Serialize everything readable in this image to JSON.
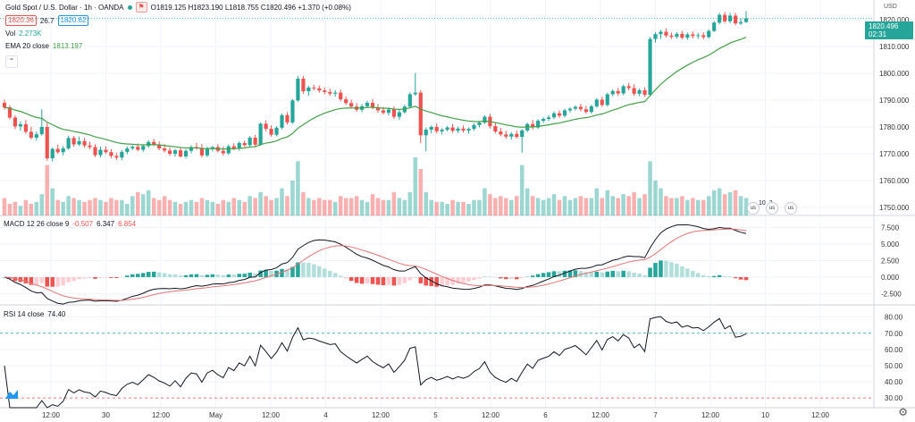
{
  "header": {
    "symbol": "Gold Spot / U.S. Dollar · 1h · OANDA",
    "ohlc": "O1819.125 H1823.190 L1818.755 C1820.496 +1.370 (+0.08%)",
    "bid": "1820.36",
    "spread": "26.7",
    "ask": "1820.62",
    "vol_label": "Vol",
    "vol_value": "2.273K",
    "ema_label": "EMA 20 close",
    "ema_value": "1813.197",
    "macd_label": "MACD 12 26 close 9",
    "macd_hist": "-0.507",
    "macd_line": "6.347",
    "macd_signal": "6.854",
    "rsi_label": "RSI 14 close",
    "rsi_value": "74.40",
    "currency": "USD",
    "last_price": "1820.496",
    "countdown": "02:31",
    "event_label": "10",
    "event_count": "2"
  },
  "colors": {
    "up": "#26a69a",
    "down": "#ef5350",
    "ema": "#43a047",
    "macd": "#131722",
    "signal": "#e57373",
    "rsi": "#131722",
    "grid": "#f0f3fa"
  },
  "chart_data": {
    "type": "candlestick",
    "price_axis": {
      "ticks": [
        1750,
        1760,
        1770,
        1780,
        1790,
        1800,
        1810,
        1820
      ],
      "ylim": [
        1747,
        1826
      ]
    },
    "x_ticks": [
      "12:00",
      "30",
      "12:00",
      "May",
      "12:00",
      "4",
      "12:00",
      "5",
      "12:00",
      "6",
      "12:00",
      "7",
      "12:00",
      "10",
      "12:00"
    ],
    "candles": [
      [
        1789,
        1790.2,
        1786.5,
        1787.3
      ],
      [
        1787.3,
        1788.1,
        1782.8,
        1783.5
      ],
      [
        1783.5,
        1784.3,
        1779.2,
        1780.2
      ],
      [
        1780.2,
        1782,
        1778.6,
        1781
      ],
      [
        1781,
        1782.6,
        1777.4,
        1778.2
      ],
      [
        1778.2,
        1780.1,
        1775.3,
        1776
      ],
      [
        1776,
        1778.3,
        1774.9,
        1777.3
      ],
      [
        1777.3,
        1786.6,
        1776.8,
        1780
      ],
      [
        1780,
        1781.5,
        1767.4,
        1768.3
      ],
      [
        1768.3,
        1772.4,
        1767.1,
        1771.8
      ],
      [
        1771.8,
        1773.4,
        1770,
        1770.6
      ],
      [
        1770.6,
        1772.9,
        1769.4,
        1772
      ],
      [
        1772,
        1776.8,
        1771.4,
        1775.9
      ],
      [
        1775.9,
        1776.7,
        1772.6,
        1773.5
      ],
      [
        1773.5,
        1776.4,
        1772.9,
        1774.7
      ],
      [
        1774.7,
        1775.9,
        1772.2,
        1773.1
      ],
      [
        1773.1,
        1774.5,
        1771.7,
        1772.5
      ],
      [
        1772.5,
        1773.6,
        1768.8,
        1769.5
      ],
      [
        1769.5,
        1772.7,
        1768.6,
        1771.5
      ],
      [
        1771.5,
        1772.8,
        1770,
        1770.6
      ],
      [
        1770.6,
        1771.7,
        1768.4,
        1769.2
      ],
      [
        1769.2,
        1770.3,
        1767.7,
        1768.6
      ],
      [
        1768.6,
        1771.4,
        1767.6,
        1770.7
      ],
      [
        1770.7,
        1772.8,
        1769.8,
        1772
      ],
      [
        1772,
        1773.2,
        1771.3,
        1772.6
      ],
      [
        1772.6,
        1773.8,
        1771,
        1771.5
      ],
      [
        1771.5,
        1773.5,
        1770.7,
        1772.9
      ],
      [
        1772.9,
        1775,
        1772.2,
        1774.4
      ],
      [
        1774.4,
        1775.5,
        1772.8,
        1773.4
      ],
      [
        1773.4,
        1774.6,
        1771.3,
        1772
      ],
      [
        1772,
        1773.6,
        1770.5,
        1771.2
      ],
      [
        1771.2,
        1772.3,
        1769.3,
        1770
      ],
      [
        1770,
        1771.8,
        1769,
        1771.3
      ],
      [
        1771.3,
        1772.6,
        1768.6,
        1769
      ],
      [
        1769,
        1771.8,
        1768.2,
        1771.1
      ],
      [
        1771.1,
        1773.2,
        1770.2,
        1772.5
      ],
      [
        1772.5,
        1774.1,
        1771.5,
        1772.2
      ],
      [
        1772.2,
        1773.7,
        1768.6,
        1769.4
      ],
      [
        1769.4,
        1772.6,
        1768.7,
        1771.8
      ],
      [
        1771.8,
        1772.9,
        1770.9,
        1772.5
      ],
      [
        1772.5,
        1773.6,
        1770.5,
        1771.1
      ],
      [
        1771.1,
        1772.7,
        1769.4,
        1770.2
      ],
      [
        1770.2,
        1773.5,
        1769.6,
        1772.8
      ],
      [
        1772.8,
        1773.9,
        1771.4,
        1771.9
      ],
      [
        1771.9,
        1774.6,
        1771.1,
        1774
      ],
      [
        1774,
        1774.9,
        1772.5,
        1773.2
      ],
      [
        1773.2,
        1776.6,
        1772.7,
        1776
      ],
      [
        1776,
        1777,
        1772.6,
        1773.4
      ],
      [
        1773.4,
        1781.7,
        1773,
        1781.2
      ],
      [
        1781.2,
        1782.5,
        1778.4,
        1779.3
      ],
      [
        1779.3,
        1780.6,
        1776.4,
        1777.1
      ],
      [
        1777.1,
        1780.3,
        1776.5,
        1779.7
      ],
      [
        1779.7,
        1785,
        1779.1,
        1784.4
      ],
      [
        1784.4,
        1785.5,
        1780.9,
        1781.7
      ],
      [
        1781.7,
        1790.4,
        1781.2,
        1789.9
      ],
      [
        1789.9,
        1799,
        1789.4,
        1798
      ],
      [
        1798,
        1799,
        1792.4,
        1793.3
      ],
      [
        1793.3,
        1795.4,
        1791.6,
        1794.7
      ],
      [
        1794.7,
        1795.7,
        1793.6,
        1794.4
      ],
      [
        1794.4,
        1795.5,
        1792.8,
        1793.6
      ],
      [
        1793.6,
        1794.7,
        1792.2,
        1793
      ],
      [
        1793,
        1794.3,
        1791.6,
        1792.4
      ],
      [
        1792.4,
        1793.7,
        1791.3,
        1792.8
      ],
      [
        1792.8,
        1793.9,
        1789.6,
        1790.3
      ],
      [
        1790.3,
        1791.4,
        1788.2,
        1788.9
      ],
      [
        1788.9,
        1790.2,
        1787,
        1787.6
      ],
      [
        1787.6,
        1788.9,
        1785.7,
        1786.4
      ],
      [
        1786.4,
        1788.5,
        1785.5,
        1787.7
      ],
      [
        1787.7,
        1789.8,
        1787,
        1789
      ],
      [
        1789,
        1790.4,
        1786.6,
        1787.3
      ],
      [
        1787.3,
        1788.6,
        1785.3,
        1786.2
      ],
      [
        1786.2,
        1787.5,
        1784.6,
        1785.3
      ],
      [
        1785.3,
        1787.3,
        1784.3,
        1786.5
      ],
      [
        1786.5,
        1787.6,
        1783,
        1783.8
      ],
      [
        1783.8,
        1786.3,
        1782.7,
        1785.5
      ],
      [
        1785.5,
        1788.3,
        1785,
        1787.6
      ],
      [
        1787.6,
        1792.9,
        1787,
        1792.2
      ],
      [
        1792.2,
        1800.1,
        1791.6,
        1792.8
      ],
      [
        1792.8,
        1793.7,
        1773.9,
        1776.9
      ],
      [
        1776.9,
        1779.8,
        1770.9,
        1779
      ],
      [
        1779,
        1780.6,
        1777.6,
        1780
      ],
      [
        1780,
        1781.3,
        1777.7,
        1778.4
      ],
      [
        1778.4,
        1779.6,
        1777.2,
        1779
      ],
      [
        1779,
        1780.4,
        1778.3,
        1779.8
      ],
      [
        1779.8,
        1781.1,
        1777.8,
        1778.6
      ],
      [
        1778.6,
        1780.1,
        1777.7,
        1779.4
      ],
      [
        1779.4,
        1780.5,
        1777.9,
        1778.7
      ],
      [
        1778.7,
        1779.8,
        1777.5,
        1779.3
      ],
      [
        1779.3,
        1781.3,
        1778.6,
        1780.7
      ],
      [
        1780.7,
        1782.2,
        1779.8,
        1781.6
      ],
      [
        1781.6,
        1784.4,
        1781.1,
        1783.8
      ],
      [
        1783.8,
        1784.9,
        1779.4,
        1780.3
      ],
      [
        1780.3,
        1781.5,
        1777.6,
        1778.3
      ],
      [
        1778.3,
        1779.6,
        1776.5,
        1777.2
      ],
      [
        1777.2,
        1778.6,
        1775.6,
        1776.4
      ],
      [
        1776.4,
        1778.1,
        1775.3,
        1777.4
      ],
      [
        1777.4,
        1778.6,
        1775.7,
        1776.3
      ],
      [
        1776.3,
        1779.2,
        1770.4,
        1778.7
      ],
      [
        1778.7,
        1781.6,
        1778.1,
        1781.1
      ],
      [
        1781.1,
        1782.6,
        1779,
        1779.8
      ],
      [
        1779.8,
        1782.9,
        1779.2,
        1782.3
      ],
      [
        1782.3,
        1783.6,
        1781.5,
        1783
      ],
      [
        1783,
        1784.4,
        1782.2,
        1783.6
      ],
      [
        1783.6,
        1785.8,
        1782.9,
        1785.1
      ],
      [
        1785.1,
        1786.1,
        1783.4,
        1784.2
      ],
      [
        1784.2,
        1786.8,
        1783.6,
        1786.2
      ],
      [
        1786.2,
        1787.4,
        1785.4,
        1786.8
      ],
      [
        1786.8,
        1788.1,
        1786.1,
        1787.5
      ],
      [
        1787.5,
        1788.6,
        1785.8,
        1786.6
      ],
      [
        1786.6,
        1787.8,
        1784.9,
        1785.6
      ],
      [
        1785.6,
        1788.3,
        1785,
        1787.7
      ],
      [
        1787.7,
        1790.8,
        1787.1,
        1790.2
      ],
      [
        1790.2,
        1791.3,
        1787.5,
        1788.2
      ],
      [
        1788.2,
        1792.8,
        1787.6,
        1792.2
      ],
      [
        1792.2,
        1794.1,
        1791.4,
        1793.4
      ],
      [
        1793.4,
        1794.6,
        1791.6,
        1792.5
      ],
      [
        1792.5,
        1795.8,
        1791.8,
        1795.2
      ],
      [
        1795.2,
        1796.4,
        1793.7,
        1794.5
      ],
      [
        1794.5,
        1795.9,
        1791.6,
        1792.4
      ],
      [
        1792.4,
        1794.3,
        1791.5,
        1793.7
      ],
      [
        1793.7,
        1794.7,
        1791.2,
        1792
      ],
      [
        1792,
        1813.5,
        1791.6,
        1812.8
      ],
      [
        1812.8,
        1815.3,
        1811.4,
        1814.6
      ],
      [
        1814.6,
        1816.2,
        1812.9,
        1815.5
      ],
      [
        1815.5,
        1816.8,
        1813.3,
        1814.1
      ],
      [
        1814.1,
        1815.2,
        1812.8,
        1813.6
      ],
      [
        1813.6,
        1815.4,
        1812.9,
        1814.7
      ],
      [
        1814.7,
        1815.8,
        1812.6,
        1813.3
      ],
      [
        1813.3,
        1815.2,
        1812.5,
        1814.5
      ],
      [
        1814.5,
        1815.6,
        1813,
        1813.9
      ],
      [
        1813.9,
        1815.1,
        1812.9,
        1814.2
      ],
      [
        1814.2,
        1815.3,
        1812.7,
        1813.5
      ],
      [
        1813.5,
        1816.4,
        1813,
        1815.8
      ],
      [
        1815.8,
        1819.5,
        1815.4,
        1818.9
      ],
      [
        1818.9,
        1822.5,
        1818.3,
        1821.8
      ],
      [
        1821.8,
        1822.9,
        1818.7,
        1819.4
      ],
      [
        1819.4,
        1822.6,
        1818.6,
        1821.5
      ],
      [
        1821.5,
        1822.6,
        1817.9,
        1818.6
      ],
      [
        1818.6,
        1820.4,
        1818,
        1819.1
      ],
      [
        1819.1,
        1823.2,
        1818.8,
        1820.5
      ]
    ],
    "volume": [
      9,
      6,
      7,
      5,
      8,
      6,
      7,
      11,
      26,
      14,
      8,
      7,
      10,
      9,
      8,
      7,
      8,
      9,
      8,
      7,
      9,
      8,
      8,
      6,
      10,
      12,
      11,
      13,
      9,
      8,
      10,
      8,
      7,
      6,
      7,
      8,
      7,
      9,
      8,
      7,
      6,
      8,
      7,
      9,
      8,
      7,
      10,
      9,
      12,
      10,
      8,
      9,
      14,
      10,
      18,
      28,
      12,
      9,
      8,
      9,
      8,
      8,
      7,
      10,
      9,
      9,
      10,
      8,
      7,
      11,
      9,
      8,
      8,
      12,
      9,
      8,
      12,
      30,
      24,
      12,
      8,
      7,
      7,
      6,
      8,
      7,
      7,
      6,
      8,
      8,
      14,
      11,
      9,
      10,
      9,
      8,
      10,
      26,
      14,
      10,
      9,
      8,
      9,
      11,
      8,
      10,
      8,
      9,
      10,
      9,
      9,
      14,
      9,
      13,
      10,
      9,
      11,
      10,
      12,
      9,
      11,
      28,
      18,
      14,
      10,
      9,
      9,
      10,
      8,
      9,
      8,
      8,
      10,
      13,
      14,
      11,
      12,
      13,
      10,
      9
    ],
    "ema_period": 20,
    "macd": {
      "fast": 12,
      "slow": 26,
      "signal": 9,
      "ticks": [
        -2.5,
        0,
        2.5,
        5,
        7.5
      ],
      "ylim": [
        -4.2,
        9.2
      ]
    },
    "rsi": {
      "period": 14,
      "ticks": [
        30,
        40,
        50,
        60,
        70,
        80
      ],
      "ylim": [
        24,
        87
      ],
      "levels": [
        70,
        30
      ]
    }
  }
}
